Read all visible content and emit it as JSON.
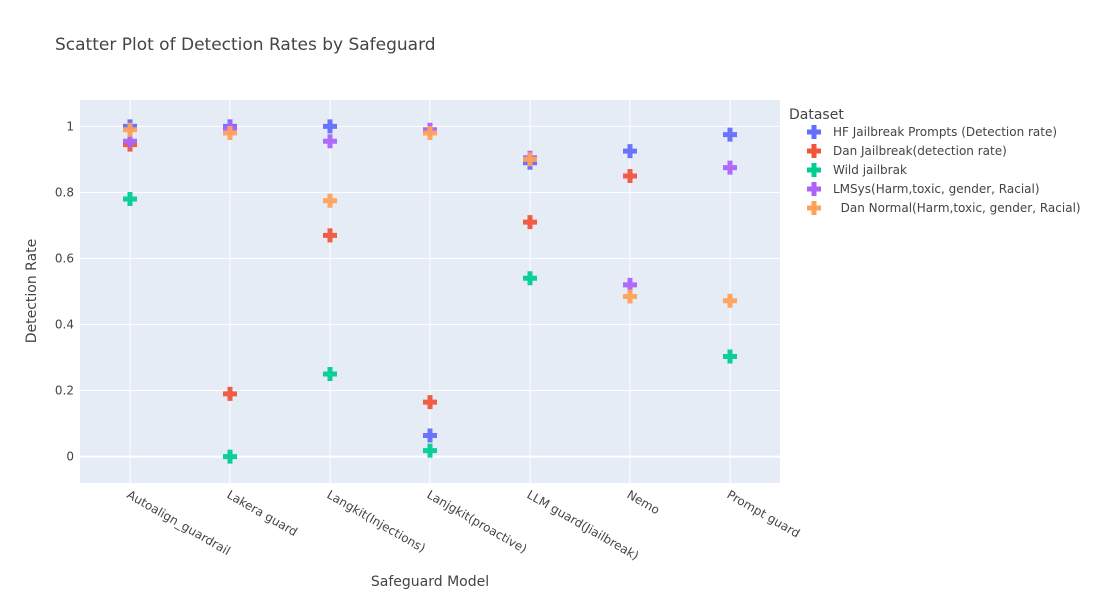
{
  "chart_data": {
    "type": "scatter",
    "title": "Scatter Plot of Detection Rates by Safeguard",
    "xlabel": "Safeguard Model",
    "ylabel": "Detection Rate",
    "ylim": [
      -0.08,
      1.08
    ],
    "yticks": [
      0,
      0.2,
      0.4,
      0.6,
      0.8,
      1
    ],
    "ytick_labels": [
      "0",
      "0.2",
      "0.4",
      "0.6",
      "0.8",
      "1"
    ],
    "grid": true,
    "legend_title": "Dataset",
    "legend_position": "top-right outside",
    "marker": "cross",
    "categories": [
      "Autoalign_guardrail",
      "Lakera guard",
      "Langkit(Injections)",
      "Lanjgkit(proactive)",
      "LLM guard(Jiailbreak)",
      "Nemo",
      "Prompt guard"
    ],
    "series": [
      {
        "name": "HF Jailbreak Prompts (Detection rate)",
        "color": "#636efa",
        "values": [
          1.0,
          1.0,
          1.0,
          0.064,
          0.89,
          0.925,
          0.975
        ]
      },
      {
        "name": "Dan Jailbreak(detection rate)",
        "color": "#ef553b",
        "values": [
          0.945,
          0.19,
          0.67,
          0.165,
          0.71,
          0.85,
          null
        ]
      },
      {
        "name": "Wild jailbrak",
        "color": "#00cc96",
        "values": [
          0.78,
          0.0,
          0.25,
          0.018,
          0.54,
          null,
          0.303
        ]
      },
      {
        "name": "LMSys(Harm,toxic, gender, Racial)",
        "color": "#ab63fa",
        "values": [
          0.955,
          0.995,
          0.955,
          0.99,
          0.905,
          0.52,
          0.875
        ]
      },
      {
        "name": "  Dan Normal(Harm,toxic, gender, Racial)",
        "color": "#ffa15a",
        "values": [
          0.99,
          0.98,
          0.775,
          0.98,
          0.9,
          0.485,
          0.472
        ]
      }
    ]
  }
}
